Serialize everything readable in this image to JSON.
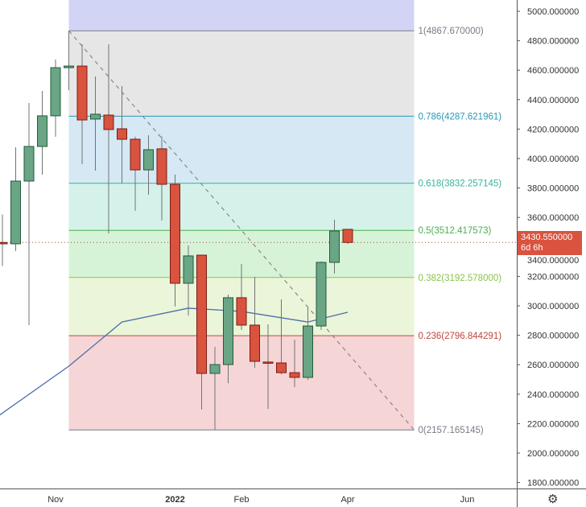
{
  "chart_data": {
    "type": "candlestick",
    "interval": "weekly",
    "y_range": [
      1800,
      5000
    ],
    "y_ticks": [
      "5000.000000",
      "4800.000000",
      "4600.000000",
      "4400.000000",
      "4200.000000",
      "4000.000000",
      "3800.000000",
      "3600.000000",
      "3400.000000",
      "3200.000000",
      "3000.000000",
      "2800.000000",
      "2600.000000",
      "2400.000000",
      "2200.000000",
      "2000.000000",
      "1800.000000"
    ],
    "x_ticks": [
      {
        "label": "Nov",
        "date": "2021-11-01"
      },
      {
        "label": "2022",
        "date": "2022-01-03",
        "bold": true
      },
      {
        "label": "Feb",
        "date": "2022-02-07"
      },
      {
        "label": "Apr",
        "date": "2022-04-04"
      },
      {
        "label": "Jun",
        "date": "2022-06-06"
      }
    ],
    "candles": [
      {
        "date": "2021-10-04",
        "o": 3430,
        "h": 3620,
        "l": 3270,
        "c": 3421
      },
      {
        "date": "2021-10-11",
        "o": 3421,
        "h": 4076,
        "l": 3372,
        "c": 3847
      },
      {
        "date": "2021-10-18",
        "o": 3847,
        "h": 4377,
        "l": 2869,
        "c": 4082
      },
      {
        "date": "2021-10-25",
        "o": 4082,
        "h": 4459,
        "l": 3891,
        "c": 4290
      },
      {
        "date": "2021-11-01",
        "o": 4290,
        "h": 4672,
        "l": 4148,
        "c": 4617
      },
      {
        "date": "2021-11-08",
        "o": 4617,
        "h": 4867.67,
        "l": 4464,
        "c": 4628
      },
      {
        "date": "2021-11-15",
        "o": 4628,
        "h": 4776,
        "l": 3962,
        "c": 4262
      },
      {
        "date": "2021-11-22",
        "o": 4268,
        "h": 4557,
        "l": 3918,
        "c": 4301
      },
      {
        "date": "2021-11-29",
        "o": 4295,
        "h": 4776,
        "l": 3492,
        "c": 4197
      },
      {
        "date": "2021-12-06",
        "o": 4202,
        "h": 4492,
        "l": 3831,
        "c": 4131
      },
      {
        "date": "2021-12-13",
        "o": 4131,
        "h": 4148,
        "l": 3645,
        "c": 3923
      },
      {
        "date": "2021-12-20",
        "o": 3923,
        "h": 4158,
        "l": 3754,
        "c": 4060
      },
      {
        "date": "2021-12-27",
        "o": 4066,
        "h": 4150,
        "l": 3579,
        "c": 3825
      },
      {
        "date": "2022-01-03",
        "o": 3825,
        "h": 3891,
        "l": 2995,
        "c": 3153
      },
      {
        "date": "2022-01-10",
        "o": 3153,
        "h": 3410,
        "l": 2934,
        "c": 3339
      },
      {
        "date": "2022-01-17",
        "o": 3344,
        "h": 3344,
        "l": 2295,
        "c": 2541
      },
      {
        "date": "2022-01-24",
        "o": 2541,
        "h": 2721,
        "l": 2157.17,
        "c": 2601
      },
      {
        "date": "2022-01-31",
        "o": 2601,
        "h": 3076,
        "l": 2475,
        "c": 3055
      },
      {
        "date": "2022-02-07",
        "o": 3055,
        "h": 3284,
        "l": 2836,
        "c": 2869
      },
      {
        "date": "2022-02-14",
        "o": 2869,
        "h": 3197,
        "l": 2579,
        "c": 2623
      },
      {
        "date": "2022-02-21",
        "o": 2618,
        "h": 2874,
        "l": 2300,
        "c": 2612
      },
      {
        "date": "2022-02-28",
        "o": 2612,
        "h": 3044,
        "l": 2535,
        "c": 2546
      },
      {
        "date": "2022-03-07",
        "o": 2546,
        "h": 2770,
        "l": 2448,
        "c": 2514
      },
      {
        "date": "2022-03-14",
        "o": 2514,
        "h": 2989,
        "l": 2497,
        "c": 2863
      },
      {
        "date": "2022-03-21",
        "o": 2863,
        "h": 3301,
        "l": 2836,
        "c": 3295
      },
      {
        "date": "2022-03-28",
        "o": 3295,
        "h": 3585,
        "l": 3219,
        "c": 3508
      },
      {
        "date": "2022-04-04",
        "o": 3519,
        "h": 3519,
        "l": 3420,
        "c": 3430.55
      }
    ],
    "moving_average": [
      {
        "date": "2021-09-27",
        "v": 2208
      },
      {
        "date": "2021-11-08",
        "v": 2590
      },
      {
        "date": "2021-12-06",
        "v": 2890
      },
      {
        "date": "2022-01-10",
        "v": 2984
      },
      {
        "date": "2022-02-07",
        "v": 2962
      },
      {
        "date": "2022-03-14",
        "v": 2890
      },
      {
        "date": "2022-04-04",
        "v": 2956
      }
    ],
    "fibonacci": {
      "start_date": "2021-11-08",
      "end_date": "2022-05-09",
      "trend_from": 4867.67,
      "trend_to": 2157.165145,
      "levels": [
        {
          "label": "1(4867.670000)",
          "value": 4867.67,
          "line": "#787b86",
          "fill": "#e6e6e6",
          "text": "#787b86"
        },
        {
          "label": "0.786(4287.621961)",
          "value": 4287.621961,
          "line": "#2a98b8",
          "fill": "#d5e8f4",
          "text": "#2a98b8"
        },
        {
          "label": "0.618(3832.257145)",
          "value": 3832.257145,
          "line": "#35b49a",
          "fill": "#d4f2ea",
          "text": "#35b49a"
        },
        {
          "label": "0.5(3512.417573)",
          "value": 3512.417573,
          "line": "#4caf50",
          "fill": "#d6f3d8",
          "text": "#4caf50"
        },
        {
          "label": "0.382(3192.578000)",
          "value": 3192.578,
          "line": "#8bc34a",
          "fill": "#ebf5d9",
          "text": "#8bc34a"
        },
        {
          "label": "0.236(2796.844291)",
          "value": 2796.844291,
          "line": "#c0463e",
          "fill": "#f6d5d7",
          "text": "#c0463e"
        },
        {
          "label": "0(2157.165145)",
          "value": 2157.165145,
          "line": "#787b86",
          "fill": null,
          "text": "#787b86"
        }
      ],
      "above_fill": "#d2d4f6"
    },
    "colors": {
      "up": "#6aa585",
      "up_border": "#225b3b",
      "down": "#d9533f",
      "down_border": "#7a1c12",
      "wick": "#737373",
      "ma": "#4a6ea8"
    }
  },
  "price_badge": {
    "price": "3430.550000",
    "countdown": "6d 6h",
    "color": "#d9533f"
  },
  "settings_icon": "gear-icon"
}
